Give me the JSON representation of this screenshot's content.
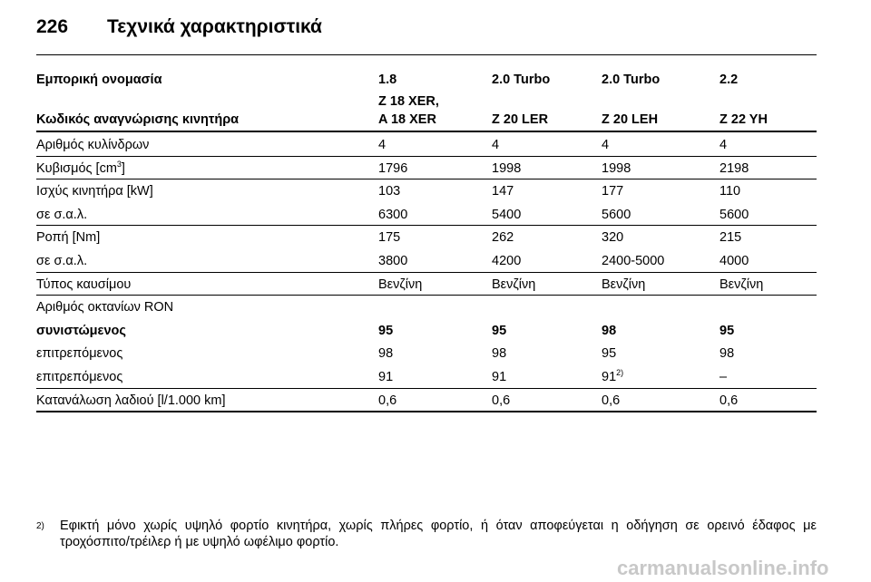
{
  "header": {
    "page_number": "226",
    "title": "Τεχνικά χαρακτηριστικά"
  },
  "table": {
    "header_rows": [
      [
        [
          "Εμπορική ονομασία"
        ],
        [
          "1.8"
        ],
        [
          "2.0 Turbo"
        ],
        [
          "2.0 Turbo"
        ],
        [
          "2.2"
        ]
      ],
      [
        [
          "Κωδικός αναγνώρισης κινητήρα"
        ],
        [
          "Z 18 XER,",
          "A 18 XER"
        ],
        [
          "Z 20 LER"
        ],
        [
          "Z 20 LEH"
        ],
        [
          "Z 22 YH"
        ]
      ]
    ],
    "groups": [
      [
        {
          "cells": [
            "Αριθμός κυλίνδρων",
            "4",
            "4",
            "4",
            "4"
          ]
        }
      ],
      [
        {
          "cells": [
            {
              "text": "Κυβισμός [cm",
              "sup": "3",
              "after": "]"
            },
            "1796",
            "1998",
            "1998",
            "2198"
          ]
        }
      ],
      [
        {
          "cells": [
            "Ισχύς κινητήρα [kW]",
            "103",
            "147",
            "177",
            "110"
          ]
        },
        {
          "cells": [
            "σε σ.α.λ.",
            "6300",
            "5400",
            "5600",
            "5600"
          ]
        }
      ],
      [
        {
          "cells": [
            "Ροπή [Nm]",
            "175",
            "262",
            "320",
            "215"
          ]
        },
        {
          "cells": [
            "σε σ.α.λ.",
            "3800",
            "4200",
            "2400-5000",
            "4000"
          ]
        }
      ],
      [
        {
          "cells": [
            "Τύπος καυσίμου",
            "Βενζίνη",
            "Βενζίνη",
            "Βενζίνη",
            "Βενζίνη"
          ]
        }
      ],
      [
        {
          "cells": [
            "Αριθμός οκτανίων RON"
          ]
        },
        {
          "cells": [
            "συνιστώμενος",
            "95",
            "95",
            "98",
            "95"
          ],
          "bold": true
        },
        {
          "cells": [
            "επιτρεπόμενος",
            "98",
            "98",
            "95",
            "98"
          ]
        },
        {
          "cells": [
            "επιτρεπόμενος",
            "91",
            "91",
            {
              "text": "91",
              "sup": "2)"
            },
            "–"
          ]
        }
      ],
      [
        {
          "cells": [
            "Κατανάλωση λαδιού [l/1.000 km]",
            "0,6",
            "0,6",
            "0,6",
            "0,6"
          ]
        }
      ]
    ]
  },
  "footnote": {
    "marker": "2)",
    "text": "Εφικτή μόνο χωρίς υψηλό φορτίο κινητήρα, χωρίς πλήρες φορτίο, ή όταν αποφεύγεται η οδήγηση σε ορεινό έδαφος με τροχόσπιτο/τρέιλερ ή με υψηλό ωφέλιμο φορτίο."
  },
  "watermark": "carmanualsonline.info"
}
